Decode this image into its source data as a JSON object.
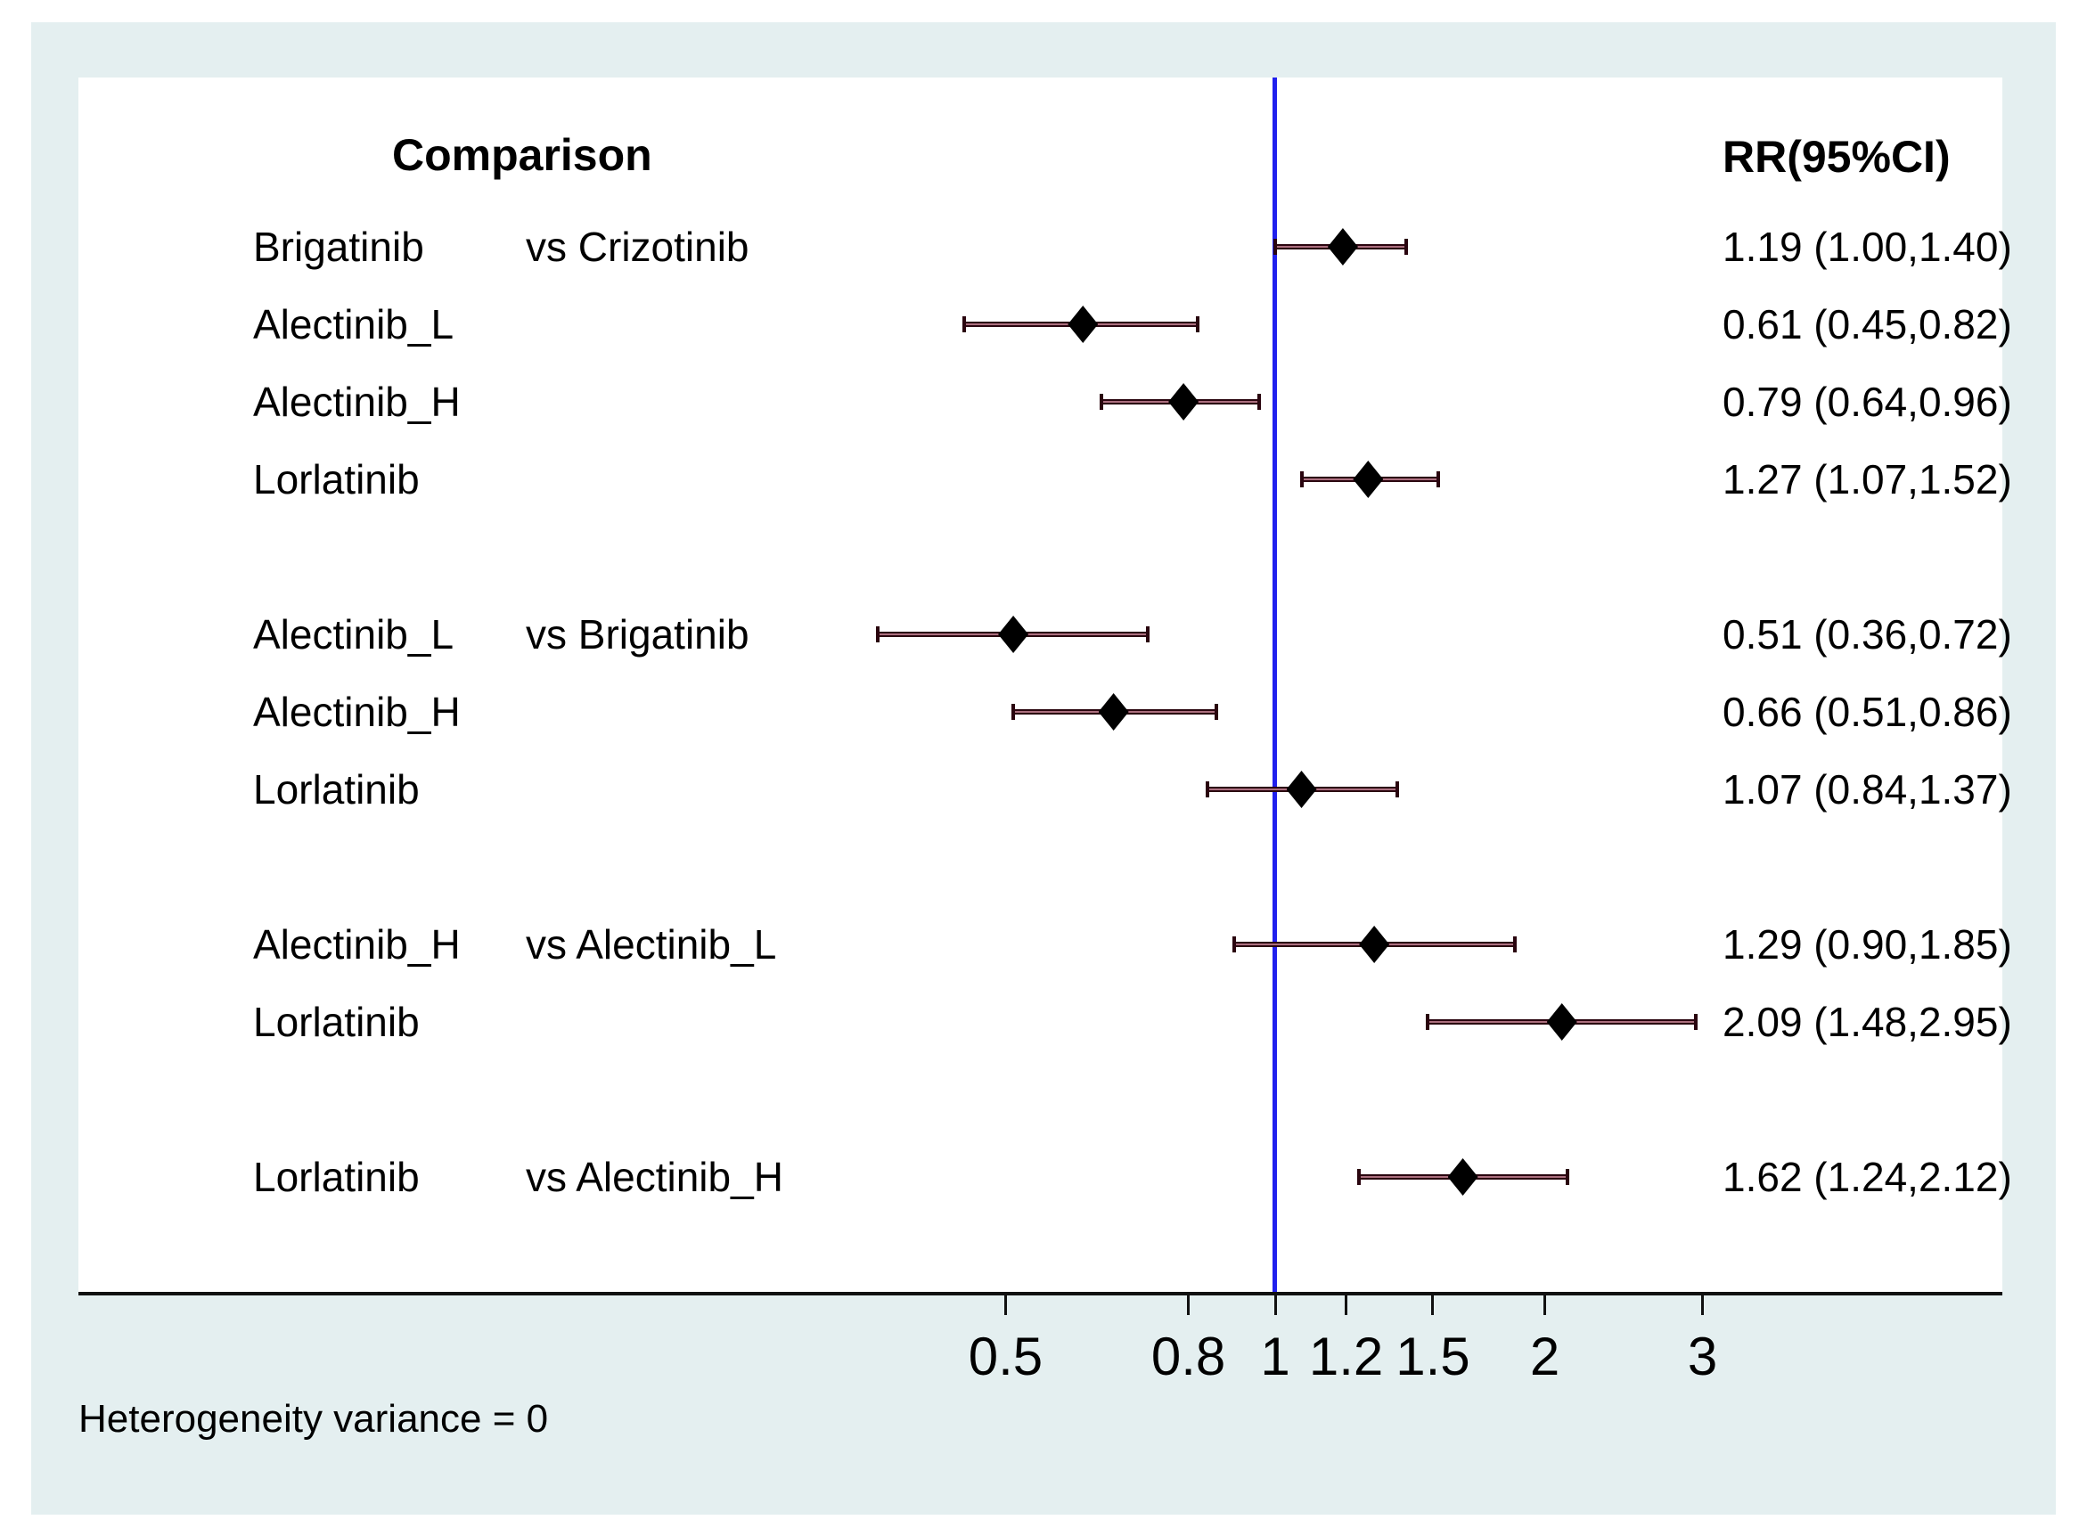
{
  "header": {
    "comparison": "Comparison",
    "rr": "RR(95%CI)"
  },
  "footer": {
    "heterogeneity": "Heterogeneity variance = 0"
  },
  "chart_data": {
    "type": "forest",
    "x_scale": "log",
    "reference_line": 1,
    "x_tick_labels": [
      "0.5",
      "0.8",
      "1",
      "1.2",
      "1.5",
      "2",
      "3"
    ],
    "columns": [
      "Comparison",
      "RR(95%CI)"
    ],
    "rows": [
      {
        "treatment": "Brigatinib",
        "comparator": "vs Crizotinib",
        "rr": 1.19,
        "ci_low": 1.0,
        "ci_high": 1.4,
        "label": "1.19 (1.00,1.40)",
        "gap_before": false
      },
      {
        "treatment": "Alectinib_L",
        "comparator": "",
        "rr": 0.61,
        "ci_low": 0.45,
        "ci_high": 0.82,
        "label": "0.61 (0.45,0.82)",
        "gap_before": false
      },
      {
        "treatment": "Alectinib_H",
        "comparator": "",
        "rr": 0.79,
        "ci_low": 0.64,
        "ci_high": 0.96,
        "label": "0.79 (0.64,0.96)",
        "gap_before": false
      },
      {
        "treatment": "Lorlatinib",
        "comparator": "",
        "rr": 1.27,
        "ci_low": 1.07,
        "ci_high": 1.52,
        "label": "1.27 (1.07,1.52)",
        "gap_before": false
      },
      {
        "treatment": "Alectinib_L",
        "comparator": "vs Brigatinib",
        "rr": 0.51,
        "ci_low": 0.36,
        "ci_high": 0.72,
        "label": "0.51 (0.36,0.72)",
        "gap_before": true
      },
      {
        "treatment": "Alectinib_H",
        "comparator": "",
        "rr": 0.66,
        "ci_low": 0.51,
        "ci_high": 0.86,
        "label": "0.66 (0.51,0.86)",
        "gap_before": false
      },
      {
        "treatment": "Lorlatinib",
        "comparator": "",
        "rr": 1.07,
        "ci_low": 0.84,
        "ci_high": 1.37,
        "label": "1.07 (0.84,1.37)",
        "gap_before": false
      },
      {
        "treatment": "Alectinib_H",
        "comparator": "vs Alectinib_L",
        "rr": 1.29,
        "ci_low": 0.9,
        "ci_high": 1.85,
        "label": "1.29 (0.90,1.85)",
        "gap_before": true
      },
      {
        "treatment": "Lorlatinib",
        "comparator": "",
        "rr": 2.09,
        "ci_low": 1.48,
        "ci_high": 2.95,
        "label": "2.09 (1.48,2.95)",
        "gap_before": false
      },
      {
        "treatment": "Lorlatinib",
        "comparator": "vs Alectinib_H",
        "rr": 1.62,
        "ci_low": 1.24,
        "ci_high": 2.12,
        "label": "1.62 (1.24,2.12)",
        "gap_before": true
      }
    ],
    "colors": {
      "panel_background": "#e4eff0",
      "plot_background": "#ffffff",
      "reference_line": "#2020ee",
      "ci_line_dark": "#2a050f",
      "ci_line_light": "#d08e9e",
      "diamond": "#000000",
      "axis": "#111111",
      "text": "#000000"
    }
  }
}
